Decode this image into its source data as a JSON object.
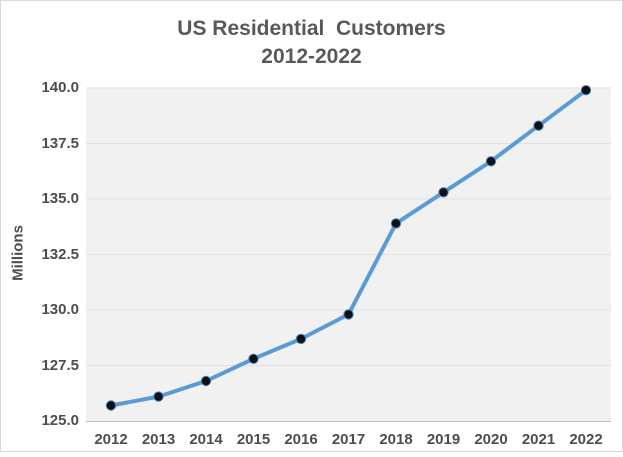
{
  "chart": {
    "title_line1": "US Residential  Customers",
    "title_line2": "2012-2022",
    "y_axis_title": "Millions"
  },
  "chart_data": {
    "type": "line",
    "title": "US Residential Customers 2012-2022",
    "categories": [
      "2012",
      "2013",
      "2014",
      "2015",
      "2016",
      "2017",
      "2018",
      "2019",
      "2020",
      "2021",
      "2022"
    ],
    "values": [
      125.7,
      126.1,
      126.8,
      127.8,
      128.7,
      129.8,
      133.9,
      135.3,
      136.7,
      138.3,
      139.9
    ],
    "xlabel": "",
    "ylabel": "Millions",
    "ylim": [
      125.0,
      140.0
    ],
    "ytick_step": 2.5,
    "ytick_labels_top_to_bottom": [
      "140.0",
      "137.5",
      "135.0",
      "132.5",
      "130.0",
      "127.5",
      "125.0"
    ],
    "grid": true,
    "legend": false,
    "colors": {
      "line": "#5B9BD5",
      "marker_fill": "#111111",
      "marker_stroke": "#4a86c8",
      "plot_background": "#f1f1f1",
      "gridline": "#e2e2e2",
      "axis_line": "#bfbfbf",
      "text": "#4d4d4d",
      "title_text": "#595959",
      "frame_border": "#d9d9d9"
    }
  }
}
